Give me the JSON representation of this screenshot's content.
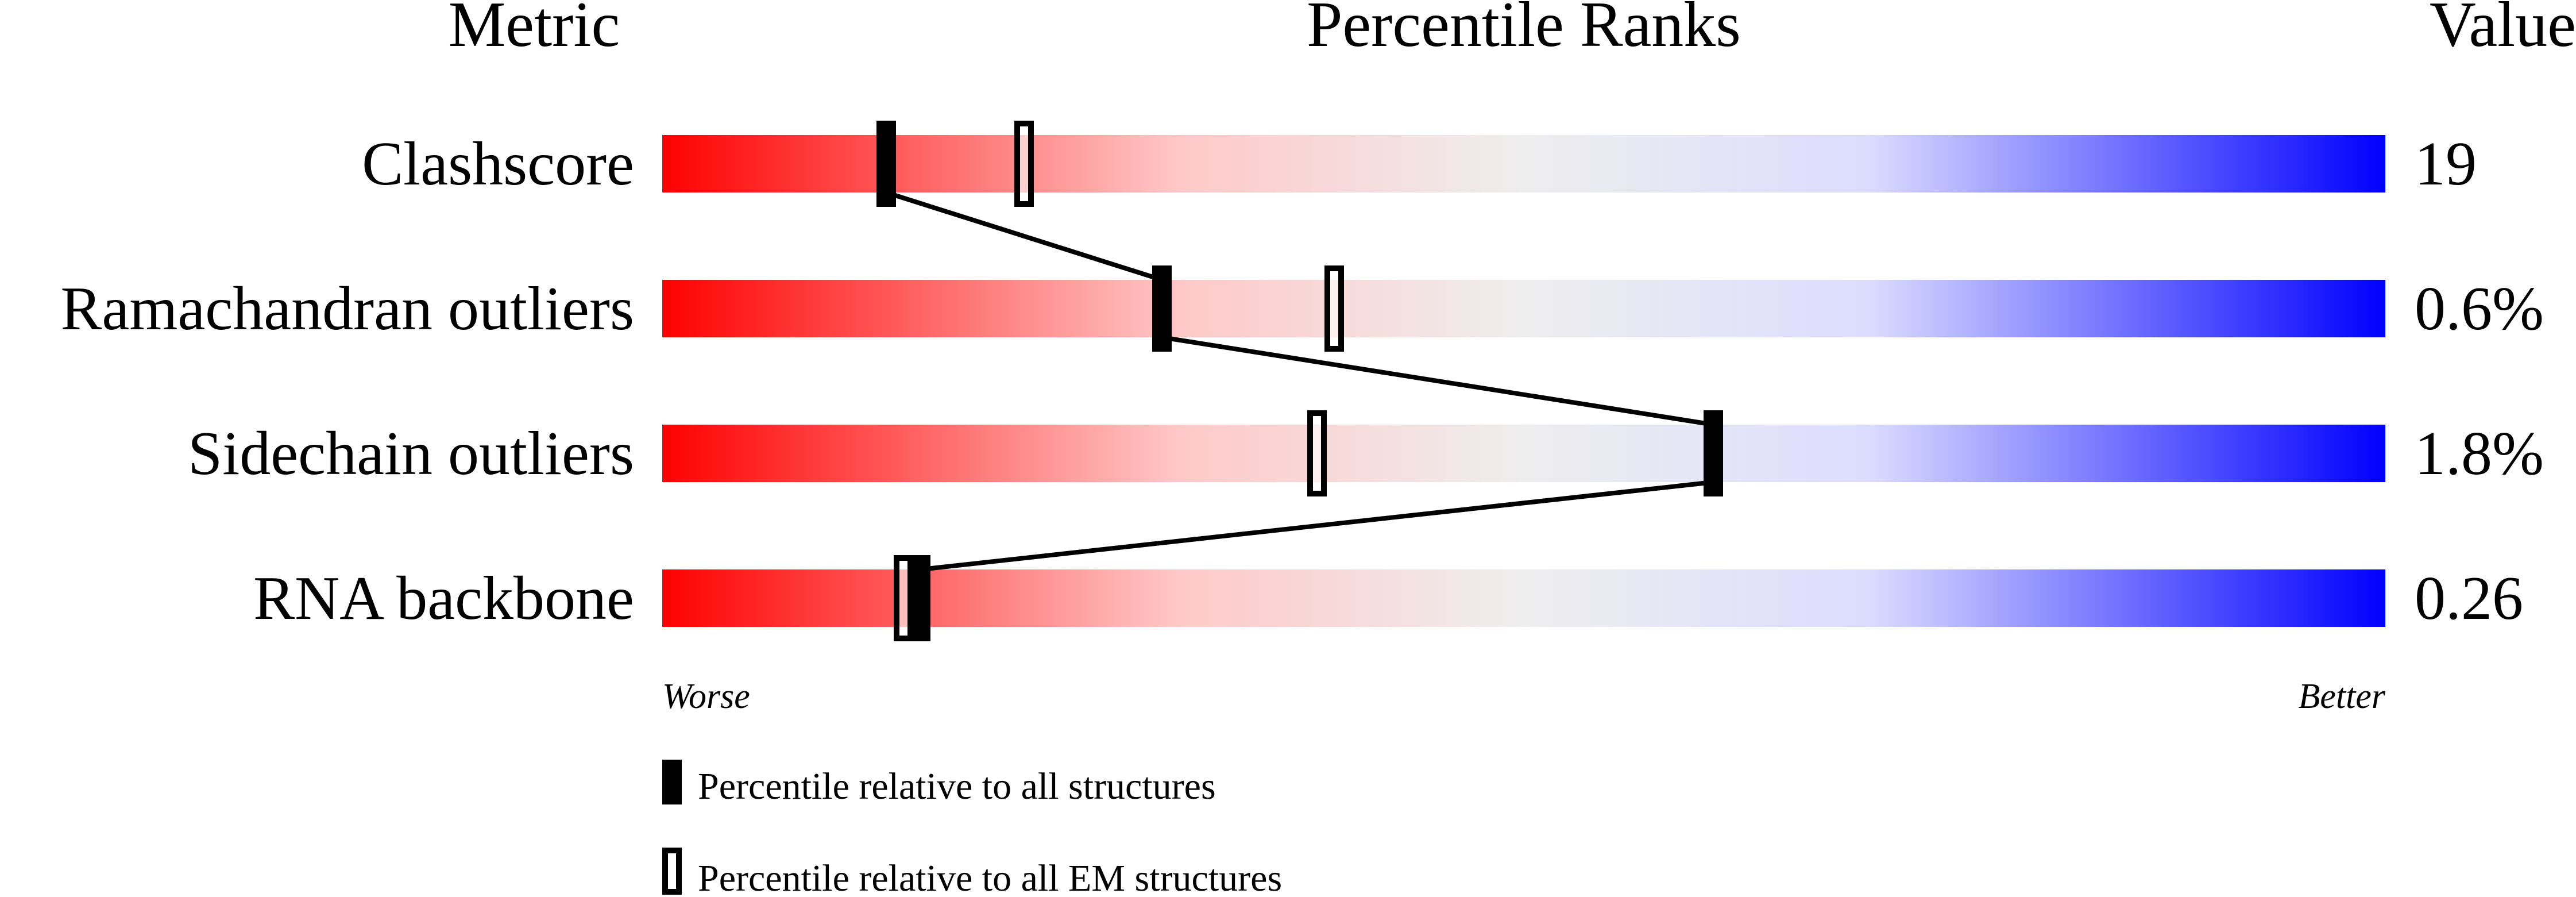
{
  "chart_data": {
    "type": "percentile-slider",
    "headers": {
      "metric": "Metric",
      "ranks": "Percentile Ranks",
      "value": "Value"
    },
    "xlim": [
      0,
      100
    ],
    "axis_labels": {
      "left": "Worse",
      "right": "Better"
    },
    "gradient_colors": [
      "#ff0000",
      "#ffc8c8",
      "#eeeeee",
      "#dcdcff",
      "#0000ff"
    ],
    "rows": [
      {
        "metric": "Clashscore",
        "value": "19",
        "percentile_all": 13,
        "percentile_em": 21
      },
      {
        "metric": "Ramachandran outliers",
        "value": "0.6%",
        "percentile_all": 29,
        "percentile_em": 39
      },
      {
        "metric": "Sidechain outliers",
        "value": "1.8%",
        "percentile_all": 61,
        "percentile_em": 38
      },
      {
        "metric": "RNA backbone",
        "value": "0.26",
        "percentile_all": 15,
        "percentile_em": 14
      }
    ],
    "legend": [
      {
        "marker": "filled",
        "label": "Percentile relative to all structures"
      },
      {
        "marker": "open",
        "label": "Percentile relative to all EM structures"
      }
    ]
  }
}
